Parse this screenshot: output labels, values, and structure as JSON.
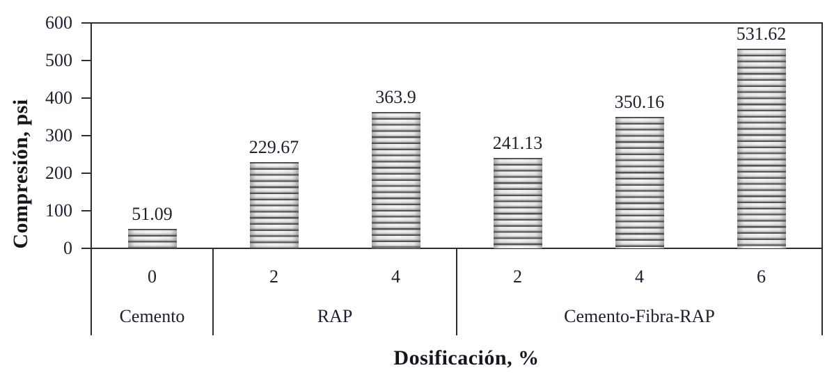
{
  "chart_data": {
    "type": "bar",
    "title": "",
    "ylabel": "Compresión, psi",
    "xlabel": "Dosificación, %",
    "ylim": [
      0,
      600
    ],
    "yticks": [
      "0",
      "100",
      "200",
      "300",
      "400",
      "500",
      "600"
    ],
    "grid": false,
    "legend": null,
    "categories": [
      "0",
      "2",
      "4",
      "2",
      "4",
      "6"
    ],
    "values": [
      51.09,
      229.67,
      363.9,
      241.13,
      350.16,
      531.62
    ],
    "groups": [
      {
        "label": "Cemento",
        "doses": [
          "0"
        ],
        "values": [
          51.09
        ],
        "value_labels": [
          "51.09"
        ]
      },
      {
        "label": "RAP",
        "doses": [
          "2",
          "4"
        ],
        "values": [
          229.67,
          363.9
        ],
        "value_labels": [
          "229.67",
          "363.9"
        ]
      },
      {
        "label": "Cemento-Fibra-RAP",
        "doses": [
          "2",
          "4",
          "6"
        ],
        "values": [
          241.13,
          350.16,
          531.62
        ],
        "value_labels": [
          "241.13",
          "350.16",
          "531.62"
        ]
      }
    ]
  },
  "colors": {
    "text": "#1c1f2e",
    "title_text": "#14161f",
    "axis_line": "#2d2d2d",
    "bar_light": "#f2f2f2",
    "bar_edge": "#a8a8a8",
    "bar_stripe": "#464646",
    "background": "#ffffff"
  }
}
